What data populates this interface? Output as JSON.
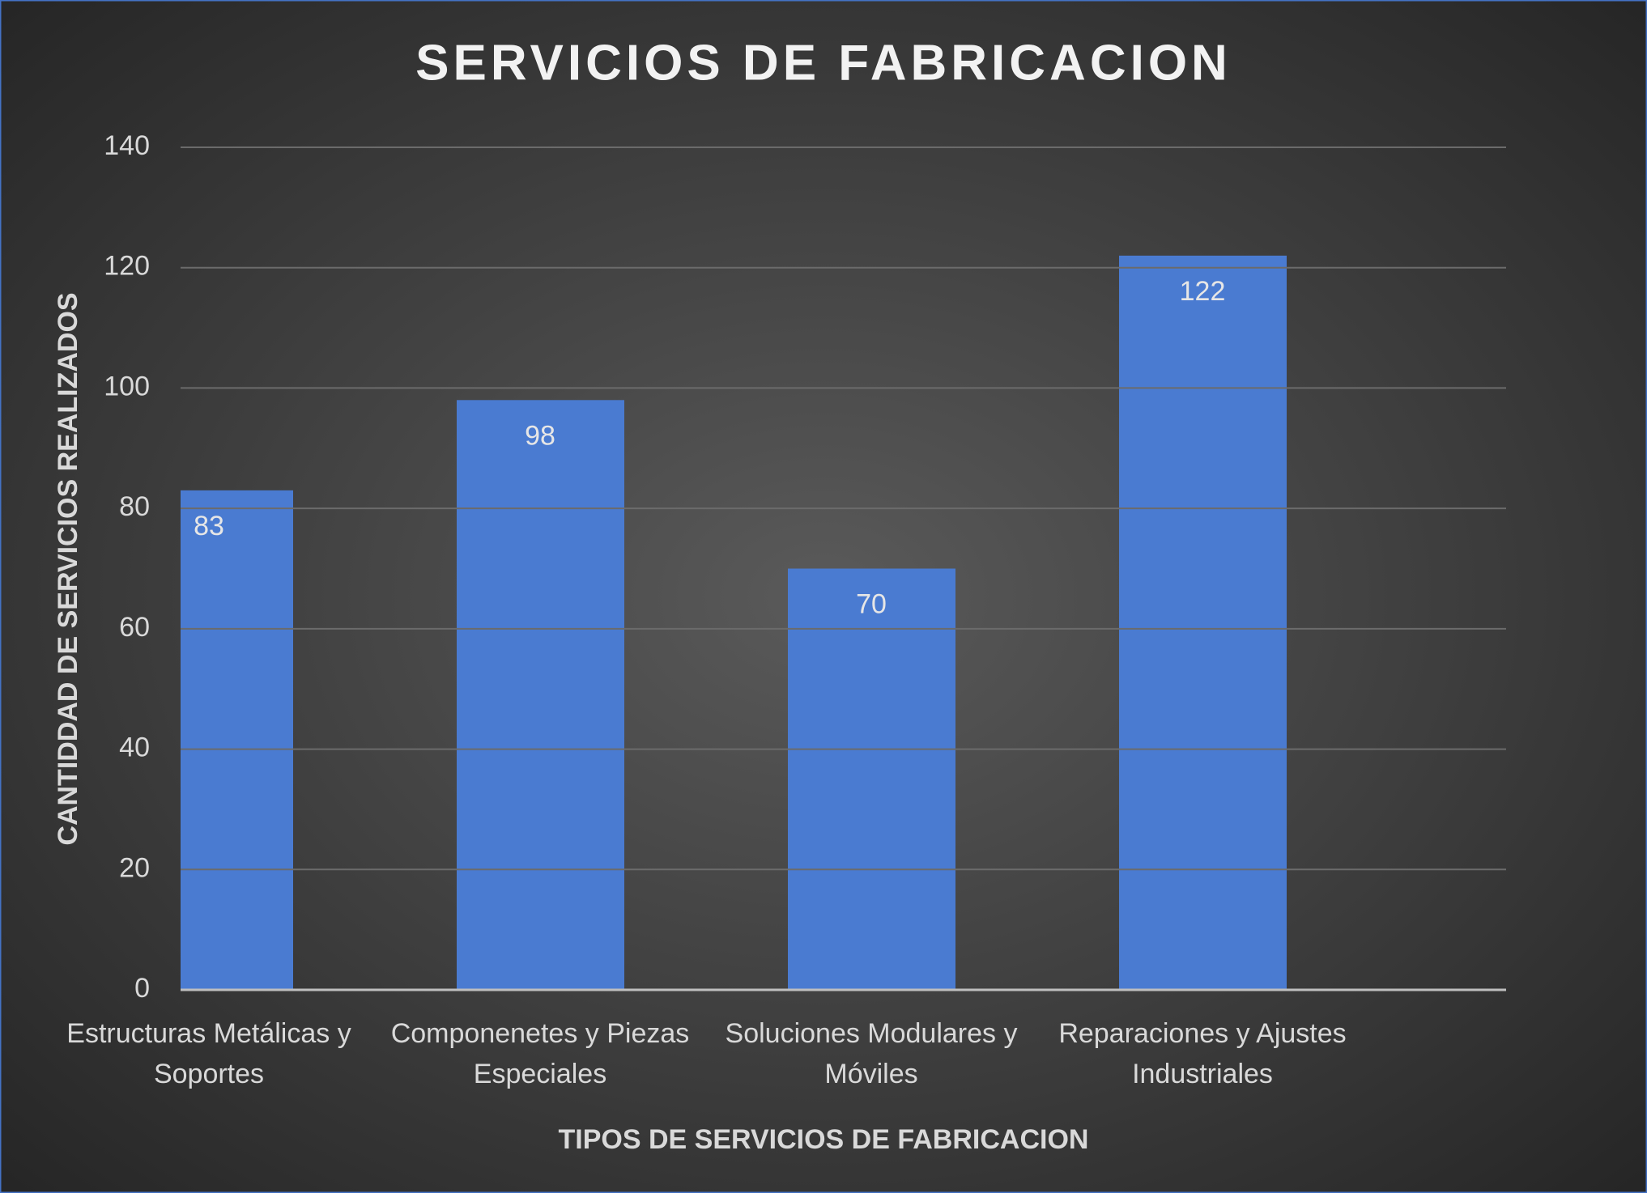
{
  "chart_data": {
    "type": "bar",
    "title": "SERVICIOS DE FABRICACION",
    "x_label": "TIPOS DE SERVICIOS DE FABRICACION",
    "y_label": "CANTIDDAD DE SERVICIOS REALIZADOS",
    "categories": [
      "Estructuras Metálicas y Soportes",
      "Componenetes y Piezas Especiales",
      "Soluciones Modulares y Móviles",
      "Reparaciones y Ajustes Industriales"
    ],
    "values": [
      83,
      98,
      70,
      122
    ],
    "color": "#4a7bd1",
    "ylim": [
      0,
      140
    ],
    "yticks": [
      0,
      20,
      40,
      60,
      80,
      100,
      120,
      140
    ],
    "grid": true
  }
}
